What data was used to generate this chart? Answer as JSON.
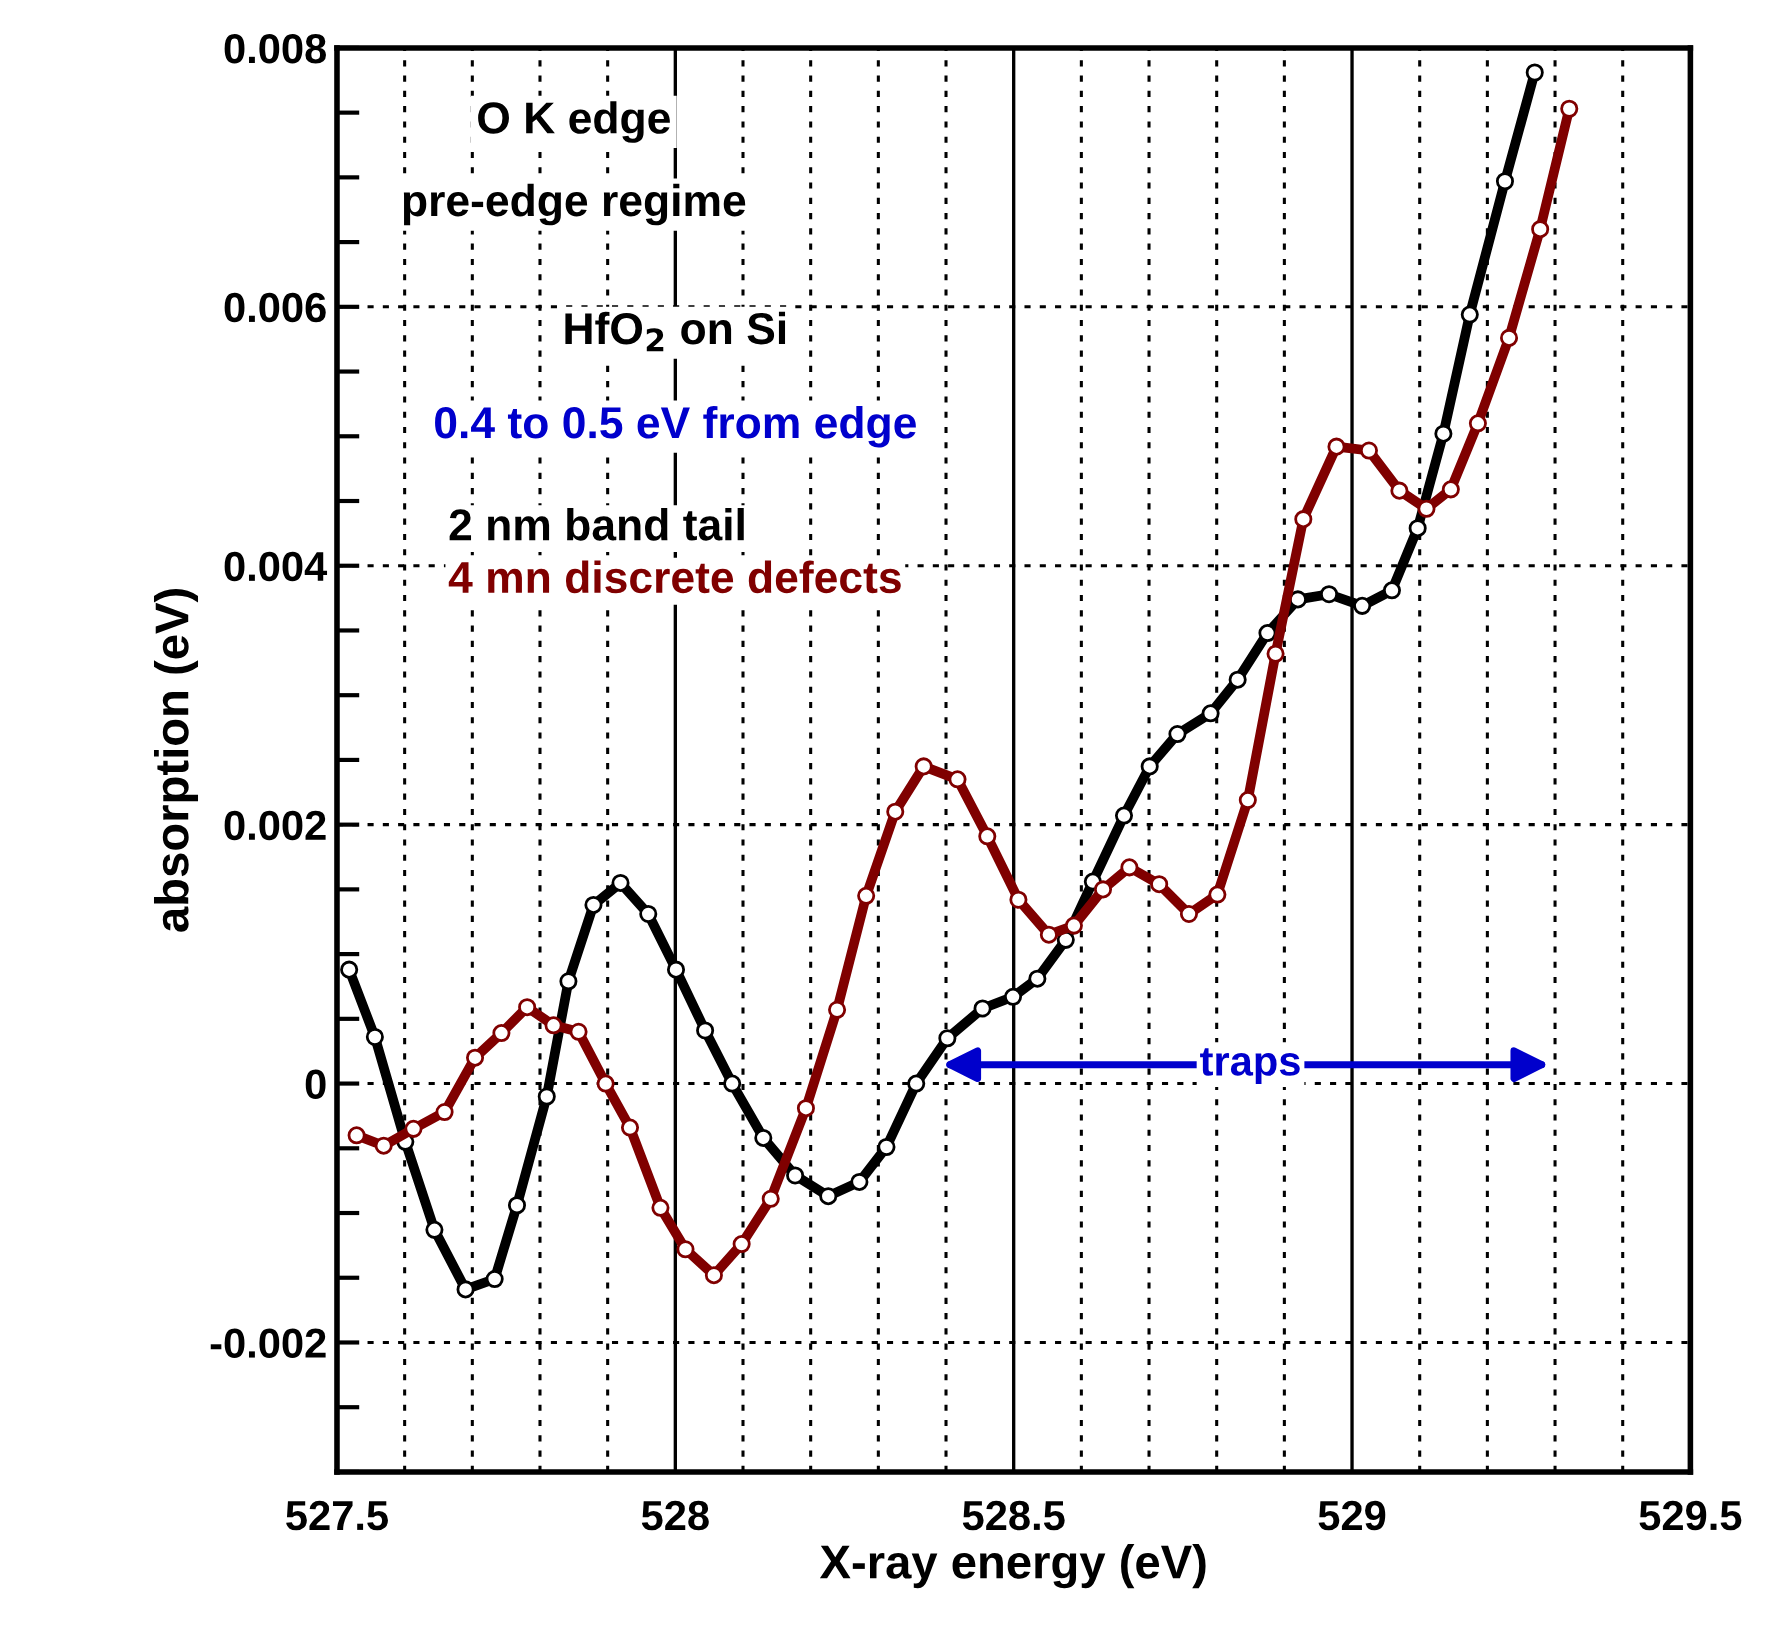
{
  "chart_data": {
    "type": "line",
    "xlabel": "X-ray energy (eV)",
    "ylabel": "absorption (eV)",
    "xlim": [
      527.5,
      529.5
    ],
    "ylim": [
      -0.003,
      0.008
    ],
    "xticks": [
      527.5,
      {
        "value": 527.6,
        "label": null
      },
      {
        "value": 527.7,
        "label": null
      },
      {
        "value": 527.8,
        "label": null
      },
      {
        "value": 527.9,
        "label": null
      },
      528,
      {
        "value": 528.1,
        "label": null
      },
      {
        "value": 528.2,
        "label": null
      },
      {
        "value": 528.3,
        "label": null
      },
      {
        "value": 528.4,
        "label": null
      },
      528.5,
      {
        "value": 528.6,
        "label": null
      },
      {
        "value": 528.7,
        "label": null
      },
      {
        "value": 528.8,
        "label": null
      },
      {
        "value": 528.9,
        "label": null
      },
      529,
      {
        "value": 529.1,
        "label": null
      },
      {
        "value": 529.2,
        "label": null
      },
      {
        "value": 529.3,
        "label": null
      },
      {
        "value": 529.4,
        "label": null
      },
      529.5
    ],
    "yticks": [
      {
        "value": -0.003,
        "label": null
      },
      {
        "value": -0.0025,
        "label": null
      },
      -0.002,
      {
        "value": -0.0015,
        "label": null
      },
      {
        "value": -0.001,
        "label": null
      },
      {
        "value": -0.0005,
        "label": null
      },
      0,
      {
        "value": 0.0005,
        "label": null
      },
      {
        "value": 0.001,
        "label": null
      },
      {
        "value": 0.0015,
        "label": null
      },
      0.002,
      {
        "value": 0.0025,
        "label": null
      },
      {
        "value": 0.003,
        "label": null
      },
      {
        "value": 0.0035,
        "label": null
      },
      0.004,
      {
        "value": 0.0045,
        "label": null
      },
      {
        "value": 0.005,
        "label": null
      },
      {
        "value": 0.0055,
        "label": null
      },
      0.006,
      {
        "value": 0.0065,
        "label": null
      },
      {
        "value": 0.007,
        "label": null
      },
      {
        "value": 0.0075,
        "label": null
      },
      0.008
    ],
    "grid": true,
    "marker": "circle",
    "line_style": "solid",
    "legend": "top left",
    "series": [
      {
        "name": "2 nm band tail",
        "color": "#000000",
        "x": [
          527.518,
          527.556,
          527.601,
          527.644,
          527.69,
          527.733,
          527.766,
          527.81,
          527.842,
          527.879,
          527.919,
          527.96,
          528.001,
          528.044,
          528.084,
          528.13,
          528.177,
          528.226,
          528.272,
          528.312,
          528.356,
          528.402,
          528.454,
          528.499,
          528.535,
          528.577,
          528.617,
          528.663,
          528.701,
          528.742,
          528.791,
          528.831,
          528.875,
          528.92,
          528.966,
          529.015,
          529.059,
          529.097,
          529.135,
          529.174,
          529.226,
          529.27
        ],
        "values": [
          0.00088,
          0.00036,
          -0.00045,
          -0.00113,
          -0.00159,
          -0.00151,
          -0.00094,
          -0.0001,
          0.00079,
          0.00138,
          0.00155,
          0.00131,
          0.00088,
          0.00041,
          0.0,
          -0.00042,
          -0.00071,
          -0.00087,
          -0.00076,
          -0.00049,
          0.0,
          0.00035,
          0.00058,
          0.00067,
          0.00081,
          0.00111,
          0.00156,
          0.00207,
          0.00245,
          0.0027,
          0.00286,
          0.00312,
          0.00348,
          0.00374,
          0.00378,
          0.00369,
          0.00381,
          0.00429,
          0.00502,
          0.00594,
          0.00697,
          0.00781
        ]
      },
      {
        "name": "4 mn discrete defects",
        "color": "#800000",
        "x": [
          527.529,
          527.569,
          527.613,
          527.659,
          527.704,
          527.743,
          527.781,
          527.82,
          527.857,
          527.897,
          527.933,
          527.978,
          528.015,
          528.057,
          528.098,
          528.141,
          528.193,
          528.239,
          528.282,
          528.325,
          528.367,
          528.417,
          528.461,
          528.507,
          528.552,
          528.589,
          528.632,
          528.671,
          528.715,
          528.759,
          528.801,
          528.846,
          528.887,
          528.928,
          528.977,
          529.025,
          529.07,
          529.11,
          529.146,
          529.186,
          529.232,
          529.278,
          529.321
        ],
        "values": [
          -0.0004,
          -0.00048,
          -0.00035,
          -0.00022,
          0.0002,
          0.00039,
          0.00059,
          0.00045,
          0.0004,
          0.0,
          -0.00034,
          -0.00096,
          -0.00128,
          -0.00148,
          -0.00124,
          -0.00089,
          -0.00019,
          0.00057,
          0.00145,
          0.0021,
          0.00245,
          0.00235,
          0.00191,
          0.00142,
          0.00115,
          0.00122,
          0.0015,
          0.00167,
          0.00154,
          0.00131,
          0.00146,
          0.00219,
          0.00332,
          0.00436,
          0.00492,
          0.00489,
          0.00458,
          0.00444,
          0.00459,
          0.0051,
          0.00576,
          0.0066,
          0.00753
        ]
      }
    ],
    "annotations": [
      "O K edge",
      "pre-edge regime",
      "HfO$_{2}$ on Si",
      "0.4 to 0.5 eV from edge",
      "traps"
    ]
  }
}
